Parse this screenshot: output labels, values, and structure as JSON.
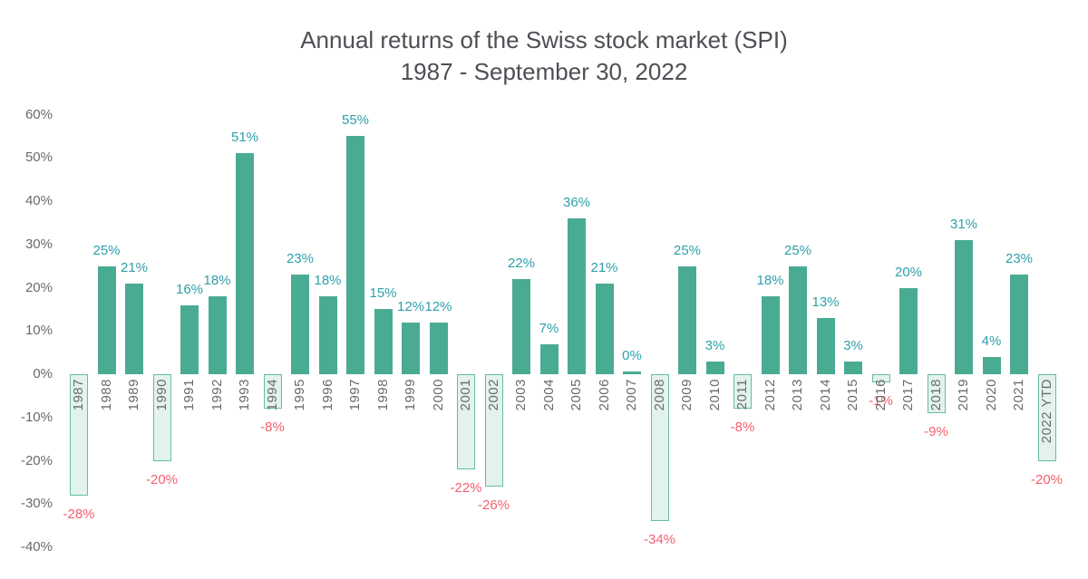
{
  "title": {
    "line1": "Annual returns of the Swiss stock market (SPI)",
    "line2": "1987 - September 30, 2022"
  },
  "chart_data": {
    "type": "bar",
    "title": "Annual returns of the Swiss stock market (SPI)",
    "subtitle": "1987 - September 30, 2022",
    "categories": [
      "1987",
      "1988",
      "1989",
      "1990",
      "1991",
      "1992",
      "1993",
      "1994",
      "1995",
      "1996",
      "1997",
      "1998",
      "1999",
      "2000",
      "2001",
      "2002",
      "2003",
      "2004",
      "2005",
      "2006",
      "2007",
      "2008",
      "2009",
      "2010",
      "2011",
      "2012",
      "2013",
      "2014",
      "2015",
      "2016",
      "2017",
      "2018",
      "2019",
      "2020",
      "2021",
      "2022 YTD"
    ],
    "values": [
      -28,
      25,
      21,
      -20,
      16,
      18,
      51,
      -8,
      23,
      18,
      55,
      15,
      12,
      12,
      -22,
      -26,
      22,
      7,
      36,
      21,
      0,
      -34,
      25,
      3,
      -8,
      18,
      25,
      13,
      3,
      -1,
      20,
      -9,
      31,
      4,
      23,
      -20
    ],
    "value_suffix": "%",
    "y_ticks": [
      60,
      50,
      40,
      30,
      20,
      10,
      0,
      -10,
      -20,
      -30,
      -40
    ],
    "ylim": [
      -40,
      60
    ],
    "grid": false,
    "legend": false,
    "xlabel": "",
    "ylabel": "",
    "colors": {
      "positive_bar": "#4AAB93",
      "negative_bar_fill": "#E3F3EC",
      "negative_bar_border": "#66BCA6",
      "positive_label": "#2EA0AA",
      "negative_label": "#F4606E",
      "axis_label": "#6A6A6A",
      "title_color": "#4C4F54"
    }
  }
}
